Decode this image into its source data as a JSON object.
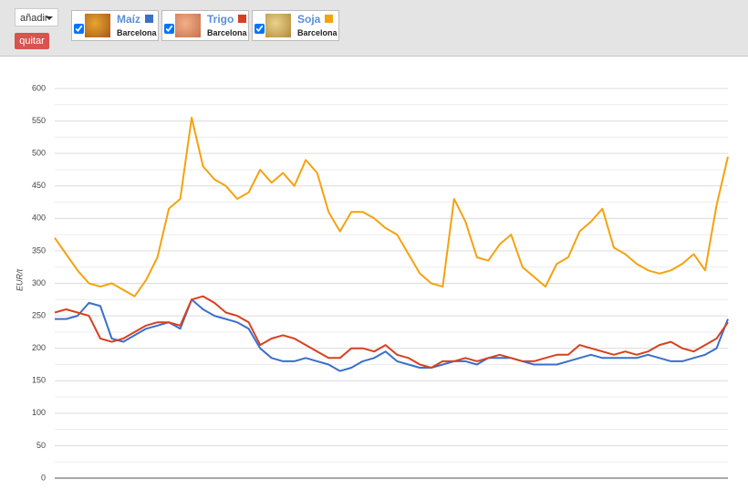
{
  "toolbar": {
    "add_button": "añadir",
    "remove_button": "quitar",
    "cards": [
      {
        "location": "Barcelona"
      },
      {
        "location": "Barcelona"
      },
      {
        "location": "Barcelona"
      }
    ]
  },
  "chart_data": {
    "type": "line",
    "y_label": "EUR/t",
    "ylim": [
      0,
      600
    ],
    "yticks": [
      0,
      50,
      100,
      150,
      200,
      250,
      300,
      350,
      400,
      450,
      500,
      550,
      600
    ],
    "minor_yticks": [
      25,
      75,
      125,
      175,
      225,
      275,
      325,
      375,
      425,
      475,
      525,
      575
    ],
    "grid": true,
    "categories": [
      null,
      null,
      null,
      null,
      null,
      null,
      null,
      null,
      null,
      null,
      null,
      null,
      null,
      null,
      null,
      null,
      null,
      null,
      null,
      null,
      null,
      null,
      null,
      null,
      null,
      null,
      null,
      null,
      null,
      null,
      null,
      null,
      null,
      null,
      null,
      null,
      null,
      null,
      null,
      null,
      null,
      null,
      null,
      null,
      null,
      null,
      null,
      null,
      null,
      null,
      null,
      null,
      null,
      null,
      null,
      null,
      null,
      null,
      null,
      null
    ],
    "series": [
      {
        "name": "Maíz",
        "color": "#3a6fcc",
        "values": [
          245,
          245,
          250,
          270,
          265,
          215,
          210,
          220,
          230,
          235,
          240,
          230,
          275,
          260,
          250,
          245,
          240,
          230,
          200,
          185,
          180,
          180,
          185,
          180,
          175,
          165,
          170,
          180,
          185,
          195,
          180,
          175,
          170,
          170,
          175,
          180,
          180,
          175,
          185,
          185,
          185,
          180,
          175,
          175,
          175,
          180,
          185,
          190,
          185,
          185,
          185,
          185,
          190,
          185,
          180,
          180,
          185,
          190,
          200,
          245
        ]
      },
      {
        "name": "Trigo",
        "color": "#d6411f",
        "values": [
          255,
          260,
          255,
          250,
          215,
          210,
          215,
          225,
          235,
          240,
          240,
          235,
          275,
          280,
          270,
          255,
          250,
          240,
          205,
          215,
          220,
          215,
          205,
          195,
          185,
          185,
          200,
          200,
          195,
          205,
          190,
          185,
          175,
          170,
          180,
          180,
          185,
          180,
          185,
          190,
          185,
          180,
          180,
          185,
          190,
          190,
          205,
          200,
          195,
          190,
          195,
          190,
          195,
          205,
          210,
          200,
          195,
          205,
          215,
          240
        ]
      },
      {
        "name": "Soja",
        "color": "#f5a20f",
        "values": [
          370,
          345,
          320,
          300,
          295,
          300,
          290,
          280,
          305,
          340,
          415,
          430,
          555,
          480,
          460,
          450,
          430,
          440,
          475,
          455,
          470,
          450,
          490,
          470,
          410,
          380,
          410,
          410,
          400,
          385,
          375,
          345,
          315,
          300,
          295,
          430,
          395,
          340,
          335,
          360,
          375,
          325,
          310,
          295,
          330,
          340,
          380,
          395,
          415,
          355,
          345,
          330,
          320,
          315,
          320,
          330,
          345,
          320,
          420,
          495
        ]
      }
    ]
  }
}
